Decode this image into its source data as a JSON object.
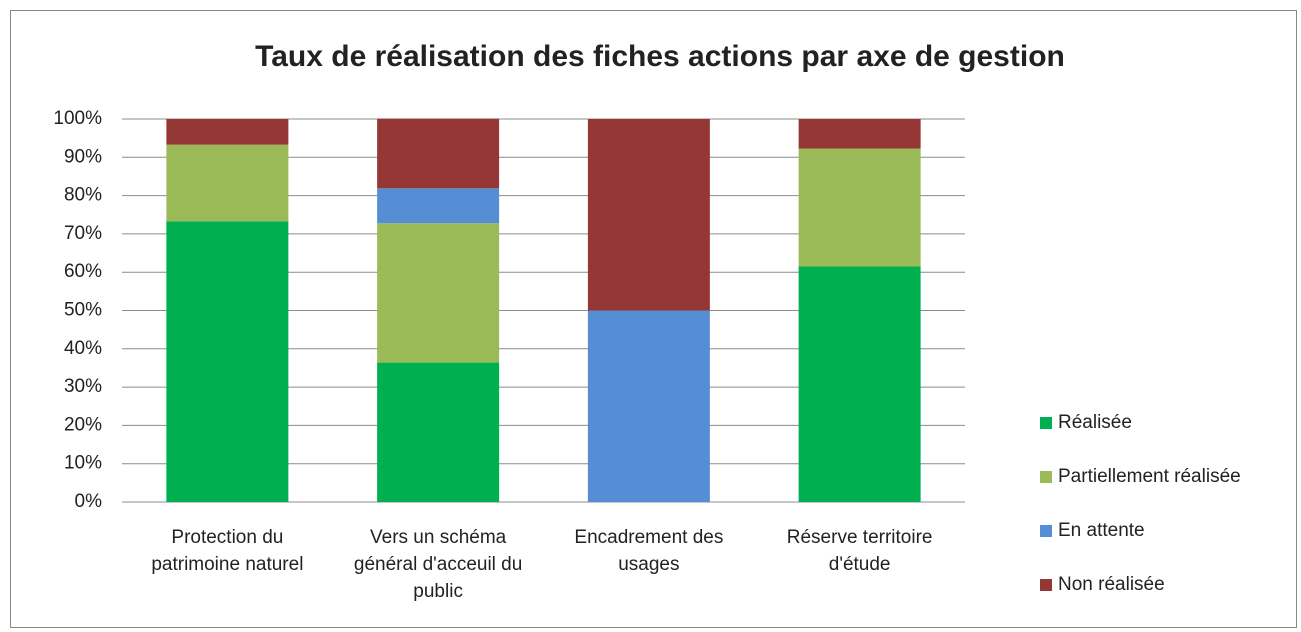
{
  "chart_data": {
    "type": "stacked-bar",
    "title": "Taux de réalisation des fiches actions par axe de gestion",
    "categories": [
      "Protection du patrimoine naturel",
      "Vers un schéma général d'acceuil du public",
      "Encadrement des usages",
      "Réserve territoire d'étude"
    ],
    "series": [
      {
        "name": "Réalisée",
        "color": "#00b050",
        "values": [
          73.3,
          36.4,
          0,
          61.5
        ]
      },
      {
        "name": "Partiellement réalisée",
        "color": "#9bbb59",
        "values": [
          20,
          36.4,
          0,
          30.8
        ]
      },
      {
        "name": "En attente",
        "color": "#558ed5",
        "values": [
          0,
          9.1,
          50,
          0
        ]
      },
      {
        "name": "Non réalisée",
        "color": "#953735",
        "values": [
          6.7,
          18.2,
          50,
          7.7
        ]
      }
    ],
    "ylim": [
      0,
      100
    ],
    "yticks": [
      {
        "value": 0,
        "label": "0%"
      },
      {
        "value": 10,
        "label": "10%"
      },
      {
        "value": 20,
        "label": "20%"
      },
      {
        "value": 30,
        "label": "30%"
      },
      {
        "value": 40,
        "label": "40%"
      },
      {
        "value": 50,
        "label": "50%"
      },
      {
        "value": 60,
        "label": "60%"
      },
      {
        "value": 70,
        "label": "70%"
      },
      {
        "value": 80,
        "label": "80%"
      },
      {
        "value": 90,
        "label": "90%"
      },
      {
        "value": 100,
        "label": "100%"
      }
    ],
    "grid": true,
    "legend": "right"
  }
}
